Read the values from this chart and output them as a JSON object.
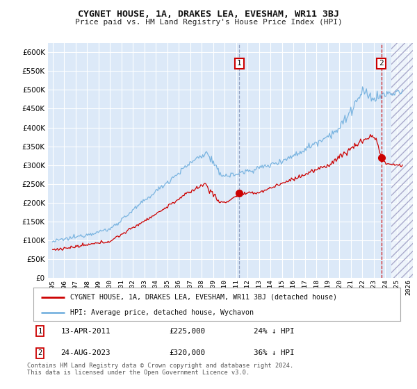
{
  "title": "CYGNET HOUSE, 1A, DRAKES LEA, EVESHAM, WR11 3BJ",
  "subtitle": "Price paid vs. HM Land Registry's House Price Index (HPI)",
  "ylabel_ticks": [
    0,
    50000,
    100000,
    150000,
    200000,
    250000,
    300000,
    350000,
    400000,
    450000,
    500000,
    550000,
    600000
  ],
  "ylim": [
    0,
    625000
  ],
  "xlim_start": 1994.6,
  "xlim_end": 2026.4,
  "bg_color": "#dce9f8",
  "grid_color": "#ffffff",
  "hpi_color": "#7ab4e0",
  "paid_color": "#cc0000",
  "marker1_x": 2011.28,
  "marker1_y": 225000,
  "marker2_x": 2023.65,
  "marker2_y": 320000,
  "footnote": "Contains HM Land Registry data © Crown copyright and database right 2024.\nThis data is licensed under the Open Government Licence v3.0.",
  "legend_label_red": "CYGNET HOUSE, 1A, DRAKES LEA, EVESHAM, WR11 3BJ (detached house)",
  "legend_label_blue": "HPI: Average price, detached house, Wychavon",
  "ann1_date": "13-APR-2011",
  "ann1_price": "£225,000",
  "ann1_pct": "24% ↓ HPI",
  "ann2_date": "24-AUG-2023",
  "ann2_price": "£320,000",
  "ann2_pct": "36% ↓ HPI"
}
